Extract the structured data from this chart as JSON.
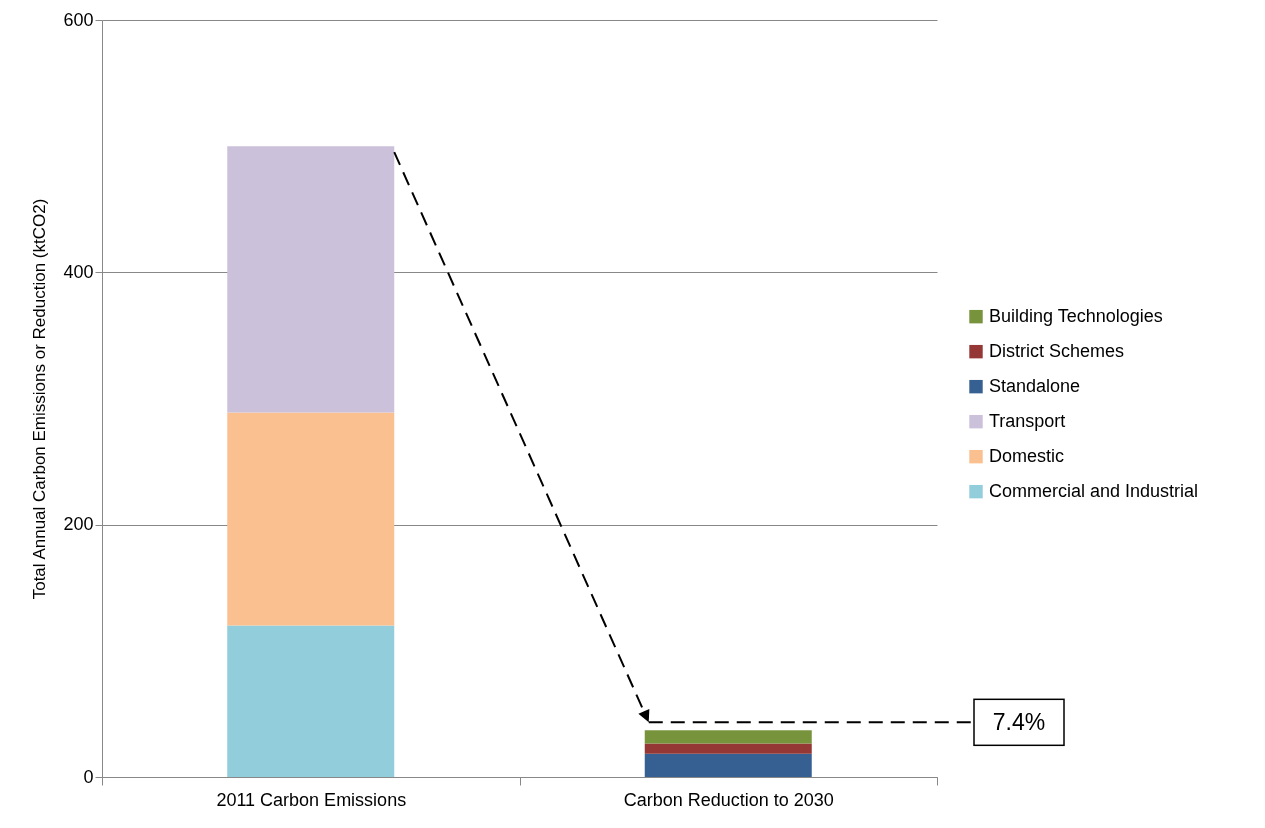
{
  "chart_data": {
    "type": "bar",
    "stacked": true,
    "ylabel": "Total Annual Carbon Emissions or Reduction (ktCO2)",
    "categories": [
      "2011 Carbon Emissions",
      "Carbon Reduction to 2030"
    ],
    "series": [
      {
        "name": "Commercial and Industrial",
        "color": "#92cddc",
        "values": [
          120,
          null
        ]
      },
      {
        "name": "Domestic",
        "color": "#fac090",
        "values": [
          169,
          null
        ]
      },
      {
        "name": "Transport",
        "color": "#ccc1da",
        "values": [
          211,
          null
        ]
      },
      {
        "name": "Standalone",
        "color": "#376092",
        "values": [
          null,
          18.5
        ]
      },
      {
        "name": "District Schemes",
        "color": "#953735",
        "values": [
          null,
          8
        ]
      },
      {
        "name": "Building Technologies",
        "color": "#77933c",
        "values": [
          null,
          10.5
        ]
      }
    ],
    "ylim": [
      0,
      600
    ],
    "yticks": [
      0,
      200,
      400,
      600
    ],
    "grid": "y",
    "legend": "right",
    "annotations": [
      "7.4%"
    ]
  }
}
